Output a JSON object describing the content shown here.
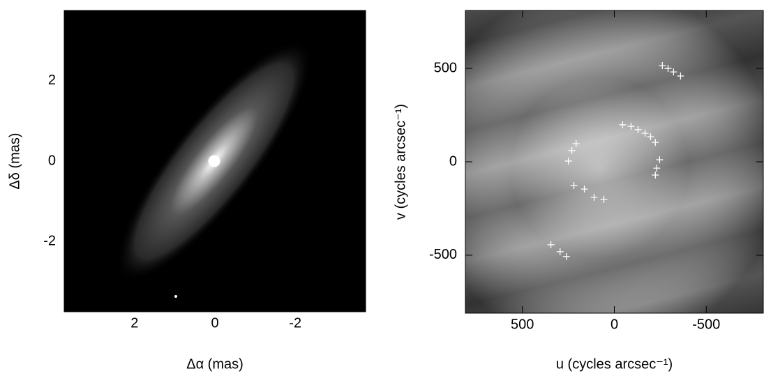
{
  "chart_data": [
    {
      "type": "image",
      "xlabel": "Δα (mas)",
      "ylabel": "Δδ (mas)",
      "xlim": [
        3.75,
        -3.75
      ],
      "ylim": [
        -3.75,
        3.75
      ],
      "xticks": [
        2,
        0,
        -2
      ],
      "yticks": [
        -2,
        0,
        2
      ]
    },
    {
      "type": "image",
      "xlabel": "u (cycles arcsec⁻¹)",
      "ylabel": "v (cycles arcsec⁻¹)",
      "xlim": [
        810,
        -810
      ],
      "ylim": [
        -810,
        810
      ],
      "xticks": [
        500,
        0,
        -500
      ],
      "yticks": [
        -500,
        0,
        500
      ],
      "series": [
        {
          "color": "#ffffff",
          "x": [
            -261,
            -292,
            -322,
            -360,
            -45,
            -91,
            -129,
            -167,
            -197,
            -223,
            -246,
            -231,
            -223,
            208,
            231,
            250,
            220,
            163,
            110,
            57,
            345,
            295,
            261
          ],
          "y": [
            515,
            500,
            481,
            459,
            198,
            190,
            172,
            153,
            134,
            104,
            11,
            -34,
            -71,
            97,
            60,
            4,
            -127,
            -146,
            -190,
            -201,
            -444,
            -481,
            -507
          ]
        }
      ]
    }
  ]
}
